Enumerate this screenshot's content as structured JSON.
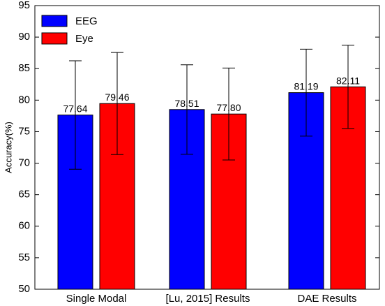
{
  "chart_data": {
    "type": "bar",
    "title": "",
    "xlabel": "",
    "ylabel": "Accuracy(%)",
    "ylim": [
      50,
      95
    ],
    "yticks": [
      "50",
      "55",
      "60",
      "65",
      "70",
      "75",
      "80",
      "85",
      "90",
      "95"
    ],
    "categories": [
      "Single Modal",
      "[Lu, 2015] Results",
      "DAE Results"
    ],
    "series": [
      {
        "name": "EEG",
        "color": "#0000ff",
        "values": [
          77.64,
          78.51,
          81.19
        ],
        "value_labels": [
          "77.64",
          "78.51",
          "81.19"
        ],
        "error": [
          8.6,
          7.1,
          6.9
        ]
      },
      {
        "name": "Eye",
        "color": "#ff0000",
        "values": [
          79.46,
          77.8,
          82.11
        ],
        "value_labels": [
          "79.46",
          "77.80",
          "82.11"
        ],
        "error": [
          8.1,
          7.3,
          6.6
        ]
      }
    ],
    "legend_position": "top-left",
    "grid": false
  }
}
